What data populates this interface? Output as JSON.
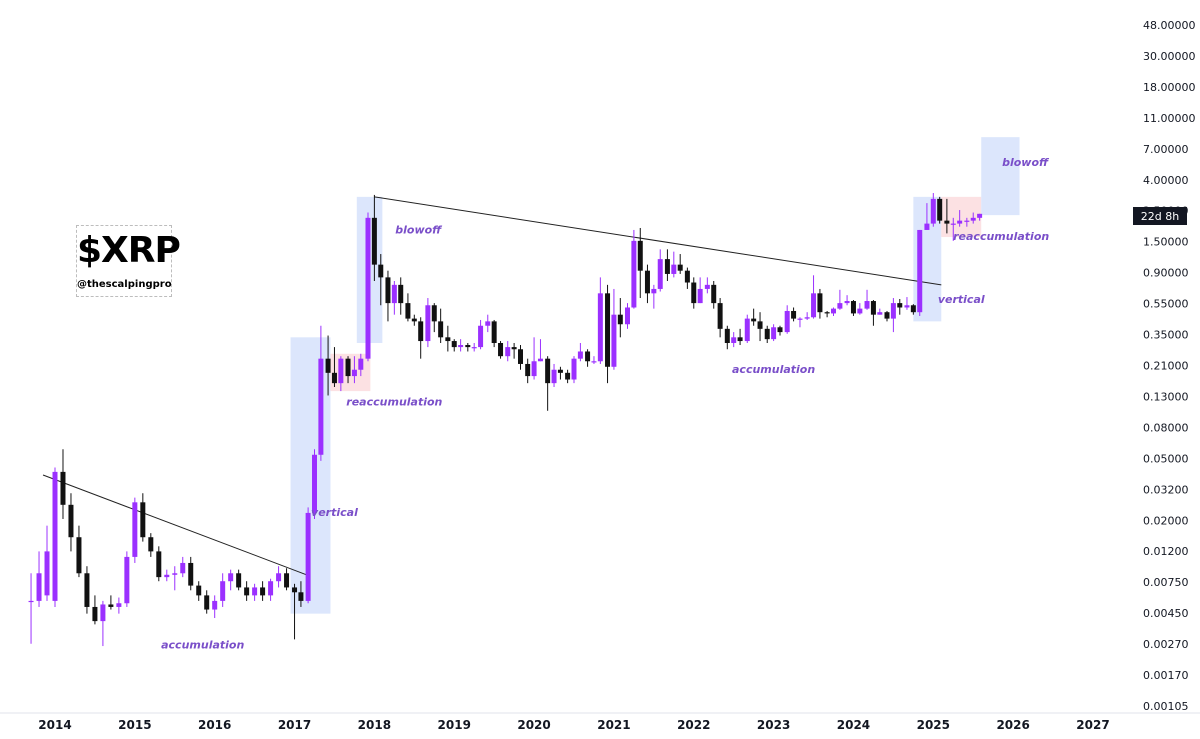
{
  "logo": {
    "title": "$XRP",
    "handle": "@thescalpingpro"
  },
  "countdown": "22d 8h",
  "colors": {
    "bull": "#9b30ff",
    "bear": "#111111",
    "zone_blue": "#d6e2fb",
    "zone_red": "#fbd9dc",
    "annotation": "#7a4fc9"
  },
  "chart_data": {
    "type": "candlestick",
    "scale": "log",
    "interval": "monthly",
    "y_ticks": [
      "48.00000",
      "30.00000",
      "18.00000",
      "11.00000",
      "7.00000",
      "4.00000",
      "2.50000",
      "1.50000",
      "0.90000",
      "0.55000",
      "0.35000",
      "0.21000",
      "0.13000",
      "0.08000",
      "0.05000",
      "0.03200",
      "0.02000",
      "0.01200",
      "0.00750",
      "0.00450",
      "0.00270",
      "0.00170",
      "0.00105"
    ],
    "x_ticks": [
      "2014",
      "2015",
      "2016",
      "2017",
      "2018",
      "2019",
      "2020",
      "2021",
      "2022",
      "2023",
      "2024",
      "2025",
      "2026",
      "2027"
    ],
    "current_price_label": "22d 8h",
    "annotations": [
      {
        "text": "accumulation",
        "t": 2015.85,
        "price": 0.0026
      },
      {
        "text": "vertical",
        "t": 2017.5,
        "price": 0.021
      },
      {
        "text": "reaccumulation",
        "t": 2018.25,
        "price": 0.12
      },
      {
        "text": "blowoff",
        "t": 2018.55,
        "price": 1.8
      },
      {
        "text": "accumulation",
        "t": 2023.0,
        "price": 0.2
      },
      {
        "text": "vertical",
        "t": 2025.35,
        "price": 0.6
      },
      {
        "text": "reaccumulation",
        "t": 2025.85,
        "price": 1.62
      },
      {
        "text": "blowoff",
        "t": 2026.15,
        "price": 5.2
      }
    ],
    "zones": [
      {
        "kind": "blue",
        "t0": 2016.95,
        "t1": 2017.45,
        "p_low": 0.0045,
        "p_high": 0.35
      },
      {
        "kind": "red",
        "t0": 2017.45,
        "t1": 2017.95,
        "p_low": 0.15,
        "p_high": 0.27
      },
      {
        "kind": "blue",
        "t0": 2017.78,
        "t1": 2018.1,
        "p_low": 0.32,
        "p_high": 3.2
      },
      {
        "kind": "blue",
        "t0": 2024.75,
        "t1": 2025.1,
        "p_low": 0.45,
        "p_high": 3.2
      },
      {
        "kind": "red",
        "t0": 2025.1,
        "t1": 2025.6,
        "p_low": 1.7,
        "p_high": 3.2
      },
      {
        "kind": "blue",
        "t0": 2025.6,
        "t1": 2026.08,
        "p_low": 2.4,
        "p_high": 8.2
      }
    ],
    "trendlines": [
      {
        "from": {
          "t": 2013.85,
          "price": 0.04
        },
        "to": {
          "t": 2017.15,
          "price": 0.0083
        }
      },
      {
        "from": {
          "t": 2018.0,
          "price": 3.2
        },
        "to": {
          "t": 2025.1,
          "price": 0.8
        }
      }
    ],
    "candles": [
      {
        "t": 2013.7,
        "o": 0.0055,
        "h": 0.0085,
        "l": 0.0028,
        "c": 0.0055
      },
      {
        "t": 2013.8,
        "o": 0.0055,
        "h": 0.012,
        "l": 0.005,
        "c": 0.0085
      },
      {
        "t": 2013.9,
        "o": 0.006,
        "h": 0.018,
        "l": 0.0055,
        "c": 0.012
      },
      {
        "t": 2014.0,
        "o": 0.0055,
        "h": 0.045,
        "l": 0.005,
        "c": 0.042
      },
      {
        "t": 2014.1,
        "o": 0.042,
        "h": 0.06,
        "l": 0.02,
        "c": 0.025
      },
      {
        "t": 2014.2,
        "o": 0.025,
        "h": 0.03,
        "l": 0.012,
        "c": 0.015
      },
      {
        "t": 2014.3,
        "o": 0.015,
        "h": 0.018,
        "l": 0.008,
        "c": 0.0085
      },
      {
        "t": 2014.4,
        "o": 0.0085,
        "h": 0.0095,
        "l": 0.0045,
        "c": 0.005
      },
      {
        "t": 2014.5,
        "o": 0.005,
        "h": 0.006,
        "l": 0.0038,
        "c": 0.004
      },
      {
        "t": 2014.6,
        "o": 0.004,
        "h": 0.0055,
        "l": 0.0027,
        "c": 0.0052
      },
      {
        "t": 2014.7,
        "o": 0.0052,
        "h": 0.006,
        "l": 0.0048,
        "c": 0.005
      },
      {
        "t": 2014.8,
        "o": 0.005,
        "h": 0.0058,
        "l": 0.0045,
        "c": 0.0053
      },
      {
        "t": 2014.9,
        "o": 0.0053,
        "h": 0.012,
        "l": 0.005,
        "c": 0.011
      },
      {
        "t": 2015.0,
        "o": 0.011,
        "h": 0.028,
        "l": 0.01,
        "c": 0.026
      },
      {
        "t": 2015.1,
        "o": 0.026,
        "h": 0.03,
        "l": 0.014,
        "c": 0.015
      },
      {
        "t": 2015.2,
        "o": 0.015,
        "h": 0.016,
        "l": 0.011,
        "c": 0.012
      },
      {
        "t": 2015.3,
        "o": 0.012,
        "h": 0.013,
        "l": 0.0075,
        "c": 0.008
      },
      {
        "t": 2015.4,
        "o": 0.008,
        "h": 0.009,
        "l": 0.0075,
        "c": 0.0083
      },
      {
        "t": 2015.5,
        "o": 0.0083,
        "h": 0.0095,
        "l": 0.0065,
        "c": 0.0085
      },
      {
        "t": 2015.6,
        "o": 0.0085,
        "h": 0.011,
        "l": 0.008,
        "c": 0.01
      },
      {
        "t": 2015.7,
        "o": 0.01,
        "h": 0.011,
        "l": 0.0065,
        "c": 0.007
      },
      {
        "t": 2015.8,
        "o": 0.007,
        "h": 0.0075,
        "l": 0.0055,
        "c": 0.006
      },
      {
        "t": 2015.9,
        "o": 0.006,
        "h": 0.0065,
        "l": 0.0045,
        "c": 0.0048
      },
      {
        "t": 2016.0,
        "o": 0.0048,
        "h": 0.006,
        "l": 0.0042,
        "c": 0.0055
      },
      {
        "t": 2016.1,
        "o": 0.0055,
        "h": 0.0085,
        "l": 0.005,
        "c": 0.0075
      },
      {
        "t": 2016.2,
        "o": 0.0075,
        "h": 0.009,
        "l": 0.0065,
        "c": 0.0085
      },
      {
        "t": 2016.3,
        "o": 0.0085,
        "h": 0.009,
        "l": 0.0065,
        "c": 0.0068
      },
      {
        "t": 2016.4,
        "o": 0.0068,
        "h": 0.0075,
        "l": 0.0055,
        "c": 0.006
      },
      {
        "t": 2016.5,
        "o": 0.006,
        "h": 0.0072,
        "l": 0.0055,
        "c": 0.0068
      },
      {
        "t": 2016.6,
        "o": 0.0068,
        "h": 0.0075,
        "l": 0.0055,
        "c": 0.006
      },
      {
        "t": 2016.7,
        "o": 0.006,
        "h": 0.0078,
        "l": 0.0055,
        "c": 0.0075
      },
      {
        "t": 2016.8,
        "o": 0.0075,
        "h": 0.0095,
        "l": 0.0068,
        "c": 0.0085
      },
      {
        "t": 2016.9,
        "o": 0.0085,
        "h": 0.0092,
        "l": 0.0065,
        "c": 0.0068
      },
      {
        "t": 2017.0,
        "o": 0.0068,
        "h": 0.0072,
        "l": 0.003,
        "c": 0.0063
      },
      {
        "t": 2017.08,
        "o": 0.0063,
        "h": 0.0075,
        "l": 0.005,
        "c": 0.0055
      },
      {
        "t": 2017.17,
        "o": 0.0055,
        "h": 0.024,
        "l": 0.0053,
        "c": 0.022
      },
      {
        "t": 2017.25,
        "o": 0.022,
        "h": 0.06,
        "l": 0.02,
        "c": 0.055
      },
      {
        "t": 2017.33,
        "o": 0.055,
        "h": 0.42,
        "l": 0.05,
        "c": 0.25
      },
      {
        "t": 2017.42,
        "o": 0.25,
        "h": 0.36,
        "l": 0.14,
        "c": 0.2
      },
      {
        "t": 2017.5,
        "o": 0.2,
        "h": 0.3,
        "l": 0.16,
        "c": 0.17
      },
      {
        "t": 2017.58,
        "o": 0.17,
        "h": 0.26,
        "l": 0.15,
        "c": 0.25
      },
      {
        "t": 2017.67,
        "o": 0.25,
        "h": 0.26,
        "l": 0.17,
        "c": 0.19
      },
      {
        "t": 2017.75,
        "o": 0.19,
        "h": 0.26,
        "l": 0.17,
        "c": 0.21
      },
      {
        "t": 2017.83,
        "o": 0.21,
        "h": 0.27,
        "l": 0.19,
        "c": 0.25
      },
      {
        "t": 2017.92,
        "o": 0.25,
        "h": 2.5,
        "l": 0.24,
        "c": 2.3
      },
      {
        "t": 2018.0,
        "o": 2.3,
        "h": 3.3,
        "l": 0.85,
        "c": 1.1
      },
      {
        "t": 2018.08,
        "o": 1.1,
        "h": 1.3,
        "l": 0.58,
        "c": 0.9
      },
      {
        "t": 2018.17,
        "o": 0.9,
        "h": 1.0,
        "l": 0.45,
        "c": 0.6
      },
      {
        "t": 2018.25,
        "o": 0.6,
        "h": 0.85,
        "l": 0.5,
        "c": 0.8
      },
      {
        "t": 2018.33,
        "o": 0.8,
        "h": 0.9,
        "l": 0.5,
        "c": 0.6
      },
      {
        "t": 2018.42,
        "o": 0.6,
        "h": 0.7,
        "l": 0.45,
        "c": 0.47
      },
      {
        "t": 2018.5,
        "o": 0.47,
        "h": 0.5,
        "l": 0.42,
        "c": 0.45
      },
      {
        "t": 2018.58,
        "o": 0.45,
        "h": 0.48,
        "l": 0.25,
        "c": 0.33
      },
      {
        "t": 2018.67,
        "o": 0.33,
        "h": 0.65,
        "l": 0.3,
        "c": 0.58
      },
      {
        "t": 2018.75,
        "o": 0.58,
        "h": 0.6,
        "l": 0.38,
        "c": 0.45
      },
      {
        "t": 2018.83,
        "o": 0.45,
        "h": 0.55,
        "l": 0.32,
        "c": 0.35
      },
      {
        "t": 2018.92,
        "o": 0.35,
        "h": 0.42,
        "l": 0.28,
        "c": 0.33
      },
      {
        "t": 2019.0,
        "o": 0.33,
        "h": 0.34,
        "l": 0.28,
        "c": 0.3
      },
      {
        "t": 2019.08,
        "o": 0.3,
        "h": 0.34,
        "l": 0.28,
        "c": 0.31
      },
      {
        "t": 2019.17,
        "o": 0.31,
        "h": 0.32,
        "l": 0.28,
        "c": 0.3
      },
      {
        "t": 2019.25,
        "o": 0.3,
        "h": 0.32,
        "l": 0.28,
        "c": 0.3
      },
      {
        "t": 2019.33,
        "o": 0.3,
        "h": 0.46,
        "l": 0.29,
        "c": 0.42
      },
      {
        "t": 2019.42,
        "o": 0.42,
        "h": 0.5,
        "l": 0.38,
        "c": 0.45
      },
      {
        "t": 2019.5,
        "o": 0.45,
        "h": 0.46,
        "l": 0.3,
        "c": 0.32
      },
      {
        "t": 2019.58,
        "o": 0.32,
        "h": 0.33,
        "l": 0.25,
        "c": 0.26
      },
      {
        "t": 2019.67,
        "o": 0.26,
        "h": 0.33,
        "l": 0.24,
        "c": 0.3
      },
      {
        "t": 2019.75,
        "o": 0.3,
        "h": 0.32,
        "l": 0.25,
        "c": 0.29
      },
      {
        "t": 2019.83,
        "o": 0.29,
        "h": 0.31,
        "l": 0.21,
        "c": 0.23
      },
      {
        "t": 2019.92,
        "o": 0.23,
        "h": 0.25,
        "l": 0.17,
        "c": 0.19
      },
      {
        "t": 2020.0,
        "o": 0.19,
        "h": 0.35,
        "l": 0.18,
        "c": 0.24
      },
      {
        "t": 2020.08,
        "o": 0.24,
        "h": 0.34,
        "l": 0.24,
        "c": 0.25
      },
      {
        "t": 2020.17,
        "o": 0.25,
        "h": 0.26,
        "l": 0.11,
        "c": 0.17
      },
      {
        "t": 2020.25,
        "o": 0.17,
        "h": 0.23,
        "l": 0.16,
        "c": 0.21
      },
      {
        "t": 2020.33,
        "o": 0.21,
        "h": 0.22,
        "l": 0.18,
        "c": 0.2
      },
      {
        "t": 2020.42,
        "o": 0.2,
        "h": 0.21,
        "l": 0.17,
        "c": 0.18
      },
      {
        "t": 2020.5,
        "o": 0.18,
        "h": 0.26,
        "l": 0.17,
        "c": 0.25
      },
      {
        "t": 2020.58,
        "o": 0.25,
        "h": 0.32,
        "l": 0.24,
        "c": 0.28
      },
      {
        "t": 2020.67,
        "o": 0.28,
        "h": 0.29,
        "l": 0.22,
        "c": 0.24
      },
      {
        "t": 2020.75,
        "o": 0.24,
        "h": 0.26,
        "l": 0.23,
        "c": 0.24
      },
      {
        "t": 2020.83,
        "o": 0.24,
        "h": 0.9,
        "l": 0.23,
        "c": 0.7
      },
      {
        "t": 2020.92,
        "o": 0.7,
        "h": 0.8,
        "l": 0.17,
        "c": 0.22
      },
      {
        "t": 2021.0,
        "o": 0.22,
        "h": 0.75,
        "l": 0.21,
        "c": 0.5
      },
      {
        "t": 2021.08,
        "o": 0.5,
        "h": 0.65,
        "l": 0.35,
        "c": 0.43
      },
      {
        "t": 2021.17,
        "o": 0.43,
        "h": 0.6,
        "l": 0.4,
        "c": 0.56
      },
      {
        "t": 2021.25,
        "o": 0.56,
        "h": 1.9,
        "l": 0.55,
        "c": 1.6
      },
      {
        "t": 2021.33,
        "o": 1.6,
        "h": 1.96,
        "l": 0.65,
        "c": 1.0
      },
      {
        "t": 2021.42,
        "o": 1.0,
        "h": 1.1,
        "l": 0.6,
        "c": 0.7
      },
      {
        "t": 2021.5,
        "o": 0.7,
        "h": 0.8,
        "l": 0.55,
        "c": 0.75
      },
      {
        "t": 2021.58,
        "o": 0.75,
        "h": 1.4,
        "l": 0.72,
        "c": 1.2
      },
      {
        "t": 2021.67,
        "o": 1.2,
        "h": 1.4,
        "l": 0.85,
        "c": 0.95
      },
      {
        "t": 2021.75,
        "o": 0.95,
        "h": 1.35,
        "l": 0.9,
        "c": 1.1
      },
      {
        "t": 2021.83,
        "o": 1.1,
        "h": 1.3,
        "l": 0.95,
        "c": 1.0
      },
      {
        "t": 2021.92,
        "o": 1.0,
        "h": 1.05,
        "l": 0.75,
        "c": 0.83
      },
      {
        "t": 2022.0,
        "o": 0.83,
        "h": 0.9,
        "l": 0.55,
        "c": 0.6
      },
      {
        "t": 2022.08,
        "o": 0.6,
        "h": 0.9,
        "l": 0.6,
        "c": 0.75
      },
      {
        "t": 2022.17,
        "o": 0.75,
        "h": 0.9,
        "l": 0.7,
        "c": 0.8
      },
      {
        "t": 2022.25,
        "o": 0.8,
        "h": 0.85,
        "l": 0.55,
        "c": 0.6
      },
      {
        "t": 2022.33,
        "o": 0.6,
        "h": 0.65,
        "l": 0.35,
        "c": 0.4
      },
      {
        "t": 2022.42,
        "o": 0.4,
        "h": 0.42,
        "l": 0.29,
        "c": 0.32
      },
      {
        "t": 2022.5,
        "o": 0.32,
        "h": 0.38,
        "l": 0.3,
        "c": 0.35
      },
      {
        "t": 2022.58,
        "o": 0.35,
        "h": 0.4,
        "l": 0.31,
        "c": 0.33
      },
      {
        "t": 2022.67,
        "o": 0.33,
        "h": 0.5,
        "l": 0.32,
        "c": 0.47
      },
      {
        "t": 2022.75,
        "o": 0.47,
        "h": 0.55,
        "l": 0.42,
        "c": 0.45
      },
      {
        "t": 2022.83,
        "o": 0.45,
        "h": 0.52,
        "l": 0.33,
        "c": 0.4
      },
      {
        "t": 2022.92,
        "o": 0.4,
        "h": 0.42,
        "l": 0.32,
        "c": 0.34
      },
      {
        "t": 2023.0,
        "o": 0.34,
        "h": 0.43,
        "l": 0.33,
        "c": 0.41
      },
      {
        "t": 2023.08,
        "o": 0.41,
        "h": 0.42,
        "l": 0.36,
        "c": 0.38
      },
      {
        "t": 2023.17,
        "o": 0.38,
        "h": 0.58,
        "l": 0.37,
        "c": 0.53
      },
      {
        "t": 2023.25,
        "o": 0.53,
        "h": 0.56,
        "l": 0.45,
        "c": 0.47
      },
      {
        "t": 2023.33,
        "o": 0.47,
        "h": 0.48,
        "l": 0.41,
        "c": 0.47
      },
      {
        "t": 2023.42,
        "o": 0.47,
        "h": 0.52,
        "l": 0.46,
        "c": 0.48
      },
      {
        "t": 2023.5,
        "o": 0.48,
        "h": 0.93,
        "l": 0.47,
        "c": 0.7
      },
      {
        "t": 2023.58,
        "o": 0.7,
        "h": 0.75,
        "l": 0.47,
        "c": 0.52
      },
      {
        "t": 2023.67,
        "o": 0.52,
        "h": 0.53,
        "l": 0.48,
        "c": 0.51
      },
      {
        "t": 2023.75,
        "o": 0.51,
        "h": 0.56,
        "l": 0.49,
        "c": 0.55
      },
      {
        "t": 2023.83,
        "o": 0.55,
        "h": 0.74,
        "l": 0.54,
        "c": 0.6
      },
      {
        "t": 2023.92,
        "o": 0.6,
        "h": 0.68,
        "l": 0.58,
        "c": 0.62
      },
      {
        "t": 2024.0,
        "o": 0.62,
        "h": 0.63,
        "l": 0.49,
        "c": 0.51
      },
      {
        "t": 2024.08,
        "o": 0.51,
        "h": 0.6,
        "l": 0.5,
        "c": 0.55
      },
      {
        "t": 2024.17,
        "o": 0.55,
        "h": 0.74,
        "l": 0.54,
        "c": 0.62
      },
      {
        "t": 2024.25,
        "o": 0.62,
        "h": 0.63,
        "l": 0.42,
        "c": 0.5
      },
      {
        "t": 2024.33,
        "o": 0.5,
        "h": 0.55,
        "l": 0.5,
        "c": 0.52
      },
      {
        "t": 2024.42,
        "o": 0.52,
        "h": 0.53,
        "l": 0.45,
        "c": 0.47
      },
      {
        "t": 2024.5,
        "o": 0.47,
        "h": 0.65,
        "l": 0.38,
        "c": 0.6
      },
      {
        "t": 2024.58,
        "o": 0.6,
        "h": 0.64,
        "l": 0.5,
        "c": 0.56
      },
      {
        "t": 2024.67,
        "o": 0.56,
        "h": 0.66,
        "l": 0.54,
        "c": 0.58
      },
      {
        "t": 2024.75,
        "o": 0.58,
        "h": 0.59,
        "l": 0.5,
        "c": 0.52
      },
      {
        "t": 2024.83,
        "o": 0.52,
        "h": 1.9,
        "l": 0.49,
        "c": 1.9
      },
      {
        "t": 2024.92,
        "o": 1.9,
        "h": 2.9,
        "l": 1.9,
        "c": 2.1
      },
      {
        "t": 2025.0,
        "o": 2.1,
        "h": 3.4,
        "l": 2.0,
        "c": 3.1
      },
      {
        "t": 2025.08,
        "o": 3.1,
        "h": 3.2,
        "l": 2.1,
        "c": 2.2
      },
      {
        "t": 2025.17,
        "o": 2.2,
        "h": 3.1,
        "l": 1.8,
        "c": 2.1
      },
      {
        "t": 2025.25,
        "o": 2.1,
        "h": 2.3,
        "l": 1.6,
        "c": 2.1
      },
      {
        "t": 2025.33,
        "o": 2.1,
        "h": 2.6,
        "l": 2.0,
        "c": 2.2
      },
      {
        "t": 2025.42,
        "o": 2.2,
        "h": 2.3,
        "l": 2.0,
        "c": 2.2
      },
      {
        "t": 2025.5,
        "o": 2.2,
        "h": 2.5,
        "l": 2.1,
        "c": 2.3
      },
      {
        "t": 2025.58,
        "o": 2.3,
        "h": 2.45,
        "l": 2.2,
        "c": 2.45
      }
    ]
  }
}
